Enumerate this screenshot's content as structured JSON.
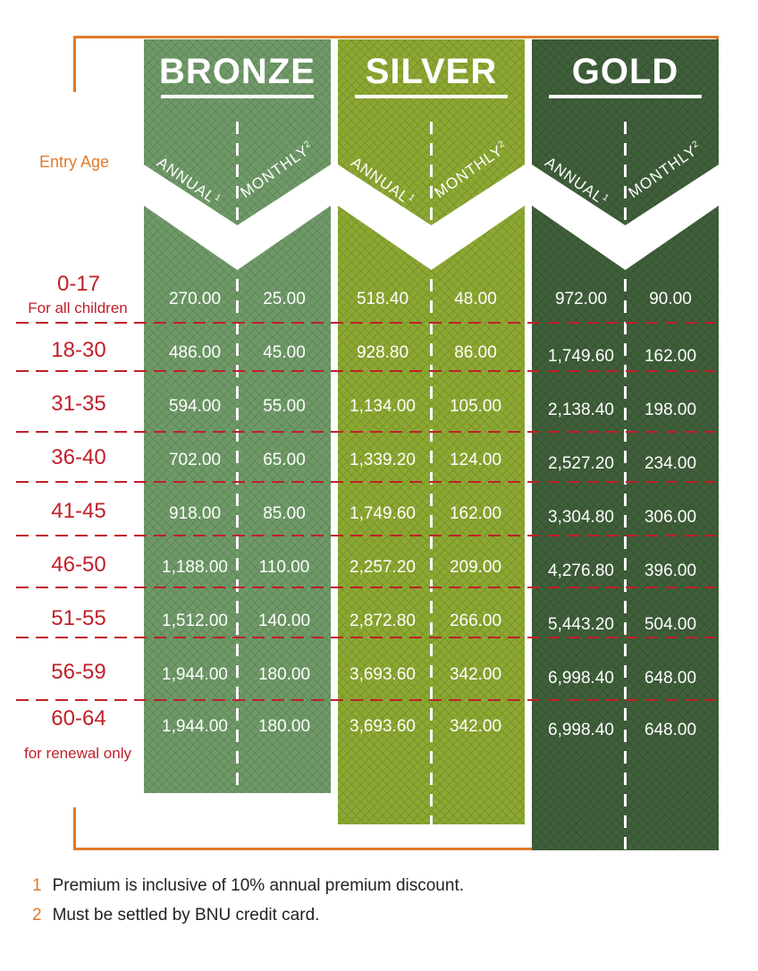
{
  "entry_age_label": "Entry Age",
  "col_annual": "ANNUAL",
  "col_annual_sup": "1",
  "col_monthly": "MONTHLY",
  "col_monthly_sup": "2",
  "tiers": [
    {
      "name": "BRONZE",
      "color": "#6f9a68"
    },
    {
      "name": "SILVER",
      "color": "#8ca832"
    },
    {
      "name": "GOLD",
      "color": "#3f5e3a"
    }
  ],
  "rows": [
    {
      "age": "0-17",
      "sub": "For all children",
      "values": [
        "270.00",
        "25.00",
        "518.40",
        "48.00",
        "972.00",
        "90.00"
      ]
    },
    {
      "age": "18-30",
      "sub": "",
      "values": [
        "486.00",
        "45.00",
        "928.80",
        "86.00",
        "1,749.60",
        "162.00"
      ]
    },
    {
      "age": "31-35",
      "sub": "",
      "values": [
        "594.00",
        "55.00",
        "1,134.00",
        "105.00",
        "2,138.40",
        "198.00"
      ]
    },
    {
      "age": "36-40",
      "sub": "",
      "values": [
        "702.00",
        "65.00",
        "1,339.20",
        "124.00",
        "2,527.20",
        "234.00"
      ]
    },
    {
      "age": "41-45",
      "sub": "",
      "values": [
        "918.00",
        "85.00",
        "1,749.60",
        "162.00",
        "3,304.80",
        "306.00"
      ]
    },
    {
      "age": "46-50",
      "sub": "",
      "values": [
        "1,188.00",
        "110.00",
        "2,257.20",
        "209.00",
        "4,276.80",
        "396.00"
      ]
    },
    {
      "age": "51-55",
      "sub": "",
      "values": [
        "1,512.00",
        "140.00",
        "2,872.80",
        "266.00",
        "5,443.20",
        "504.00"
      ]
    },
    {
      "age": "56-59",
      "sub": "",
      "values": [
        "1,944.00",
        "180.00",
        "3,693.60",
        "342.00",
        "6,998.40",
        "648.00"
      ]
    },
    {
      "age": "60-64",
      "sub": "for renewal only",
      "values": [
        "1,944.00",
        "180.00",
        "3,693.60",
        "342.00",
        "6,998.40",
        "648.00"
      ]
    }
  ],
  "footnotes": [
    {
      "num": "1",
      "text": "Premium is inclusive of 10% annual premium discount."
    },
    {
      "num": "2",
      "text": "Must be settled by BNU credit card."
    }
  ]
}
